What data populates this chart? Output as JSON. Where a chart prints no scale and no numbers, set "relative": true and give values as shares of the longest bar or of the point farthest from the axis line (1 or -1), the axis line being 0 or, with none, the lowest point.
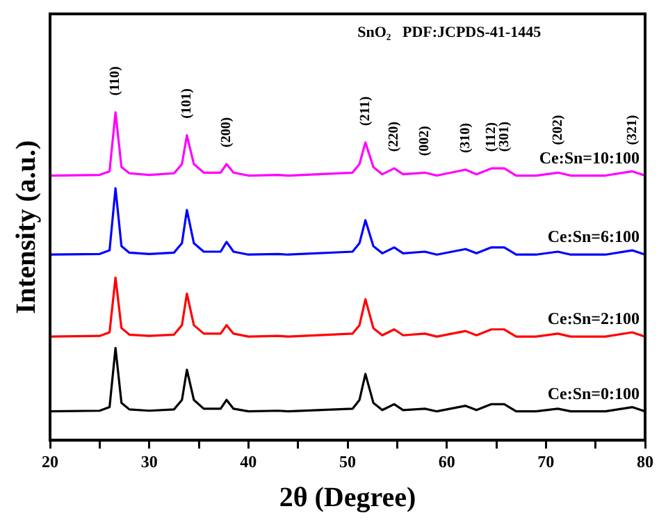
{
  "chart_data": {
    "type": "line",
    "relative": true,
    "xlabel": "2θ (Degree)",
    "ylabel": "Intensity (a.u.)",
    "x": [
      20,
      25,
      26,
      26.6,
      27.2,
      28,
      30,
      32.5,
      33.3,
      33.8,
      34.5,
      35.5,
      37.2,
      37.8,
      38.5,
      40,
      43,
      44,
      50.5,
      51.2,
      51.8,
      52.6,
      53.5,
      54.7,
      55.6,
      57.8,
      59,
      61.9,
      63,
      64.5,
      65.8,
      67,
      69,
      71.2,
      72.5,
      76,
      78.7,
      80
    ],
    "xlim": [
      20,
      80
    ],
    "xticks": [
      20,
      {
        "value": 25,
        "label": null
      },
      30,
      {
        "value": 35,
        "label": null
      },
      40,
      {
        "value": 45,
        "label": null
      },
      50,
      {
        "value": 55,
        "label": null
      },
      60,
      {
        "value": 65,
        "label": null
      },
      70,
      {
        "value": 75,
        "label": null
      },
      80
    ],
    "marker": "none",
    "line_style": "solid",
    "grid": false,
    "legend": false,
    "series": [
      {
        "name": "Ce:Sn=0:100",
        "color": "#000000",
        "values": [
          0.088,
          0.09,
          0.101,
          0.281,
          0.114,
          0.094,
          0.09,
          0.094,
          0.123,
          0.215,
          0.123,
          0.096,
          0.096,
          0.123,
          0.096,
          0.088,
          0.09,
          0.088,
          0.096,
          0.123,
          0.202,
          0.114,
          0.092,
          0.11,
          0.092,
          0.096,
          0.088,
          0.105,
          0.092,
          0.11,
          0.11,
          0.088,
          0.088,
          0.096,
          0.088,
          0.088,
          0.101,
          0.088
        ]
      },
      {
        "name": "Ce:Sn=2:100",
        "color": "#ff0000",
        "values": [
          0.316,
          0.318,
          0.329,
          0.496,
          0.342,
          0.322,
          0.318,
          0.322,
          0.351,
          0.447,
          0.351,
          0.325,
          0.325,
          0.351,
          0.325,
          0.316,
          0.318,
          0.316,
          0.325,
          0.351,
          0.43,
          0.342,
          0.32,
          0.338,
          0.32,
          0.325,
          0.316,
          0.333,
          0.32,
          0.338,
          0.338,
          0.316,
          0.316,
          0.325,
          0.316,
          0.316,
          0.329,
          0.316
        ]
      },
      {
        "name": "Ce:Sn=6:100",
        "color": "#0000ff",
        "values": [
          0.566,
          0.568,
          0.579,
          0.768,
          0.592,
          0.572,
          0.568,
          0.572,
          0.601,
          0.702,
          0.601,
          0.575,
          0.575,
          0.605,
          0.575,
          0.566,
          0.568,
          0.566,
          0.575,
          0.601,
          0.671,
          0.592,
          0.57,
          0.588,
          0.57,
          0.575,
          0.566,
          0.583,
          0.57,
          0.588,
          0.588,
          0.566,
          0.566,
          0.575,
          0.566,
          0.566,
          0.579,
          0.566
        ]
      },
      {
        "name": "Ce:Sn=10:100",
        "color": "#ff00ff",
        "values": [
          0.807,
          0.809,
          0.82,
          1,
          0.833,
          0.814,
          0.809,
          0.814,
          0.842,
          0.93,
          0.842,
          0.816,
          0.816,
          0.842,
          0.816,
          0.807,
          0.809,
          0.807,
          0.816,
          0.842,
          0.908,
          0.833,
          0.811,
          0.829,
          0.811,
          0.816,
          0.807,
          0.825,
          0.811,
          0.829,
          0.829,
          0.807,
          0.807,
          0.816,
          0.807,
          0.807,
          0.82,
          0.807
        ]
      }
    ],
    "annotations": [
      "SnO₂   PDF:JCPDS-41-1445",
      {
        "text": "(110)",
        "x": 26.6,
        "y": 1
      },
      {
        "text": "(101)",
        "x": 33.8,
        "y": 0.93
      },
      {
        "text": "(200)",
        "x": 37.8,
        "y": 0.842
      },
      {
        "text": "(211)",
        "x": 51.8,
        "y": 0.908
      },
      {
        "text": "(220)",
        "x": 54.7,
        "y": 0.829
      },
      {
        "text": "(002)",
        "x": 57.8,
        "y": 0.816
      },
      {
        "text": "(310)",
        "x": 61.9,
        "y": 0.825
      },
      {
        "text": "(112)",
        "x": 64.5,
        "y": 0.829
      },
      {
        "text": "(301)",
        "x": 65.8,
        "y": 0.829
      },
      {
        "text": "(202)",
        "x": 71.2,
        "y": 0.816
      },
      {
        "text": "(321)",
        "x": 78.7,
        "y": 0.82
      }
    ]
  }
}
